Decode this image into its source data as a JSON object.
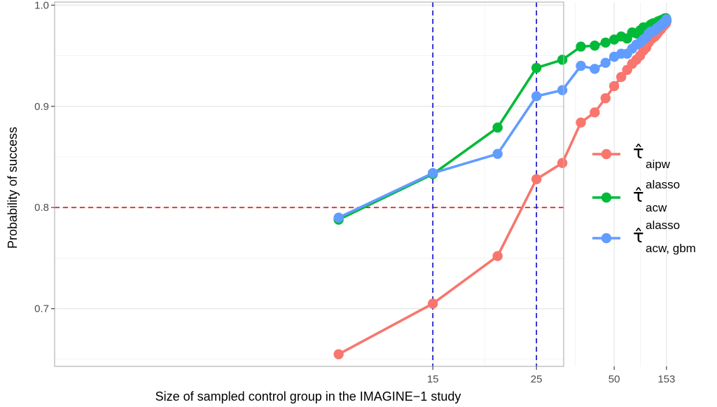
{
  "chart_data": {
    "type": "line",
    "xlabel": "Size of sampled control group in the IMAGINE−1 study",
    "ylabel": "Probability of success",
    "x_ticks": [
      15,
      25,
      50,
      153
    ],
    "x_tick_labels": [
      "15",
      "25",
      "50",
      "153"
    ],
    "y_ticks": [
      0.7,
      0.8,
      0.9,
      1.0
    ],
    "y_tick_labels": [
      "0.7",
      "0.8",
      "0.9",
      "1.0"
    ],
    "xlim": [
      0.33,
      1.64
    ],
    "ylim": [
      0.643,
      1.003
    ],
    "x_scale": "reciprocal",
    "grid": true,
    "legend_position": "right",
    "hlines": [
      {
        "y": 0.8,
        "color": "#e41a1c",
        "style": "dashed"
      }
    ],
    "vlines": [
      {
        "x": 15,
        "color": "#1f1fd0",
        "style": "dashed"
      },
      {
        "x": 25,
        "color": "#1f1fd0",
        "style": "dashed"
      }
    ],
    "x": [
      11,
      15,
      20,
      25,
      30,
      35,
      40,
      45,
      50,
      55,
      60,
      65,
      70,
      75,
      80,
      85,
      90,
      95,
      100,
      105,
      110,
      115,
      120,
      125,
      130,
      135,
      140,
      145,
      150,
      153
    ],
    "series": [
      {
        "name": "aipw",
        "legend_base": "τ̂",
        "legend_sub": "aipw",
        "legend_sup": "",
        "color": "#f8766d",
        "values": [
          0.655,
          0.705,
          0.752,
          0.828,
          0.844,
          0.884,
          0.894,
          0.908,
          0.92,
          0.929,
          0.936,
          0.942,
          0.946,
          0.95,
          0.955,
          0.958,
          0.963,
          0.966,
          0.968,
          0.969,
          0.971,
          0.973,
          0.975,
          0.976,
          0.978,
          0.979,
          0.98,
          0.981,
          0.982,
          0.984
        ]
      },
      {
        "name": "alasso acw",
        "legend_base": "τ̂",
        "legend_sub": "acw",
        "legend_sup": "alasso",
        "color": "#00ba38",
        "values": [
          0.788,
          0.833,
          0.879,
          0.938,
          0.946,
          0.959,
          0.96,
          0.963,
          0.966,
          0.969,
          0.967,
          0.973,
          0.972,
          0.975,
          0.978,
          0.977,
          0.979,
          0.981,
          0.982,
          0.981,
          0.983,
          0.984,
          0.984,
          0.985,
          0.985,
          0.986,
          0.986,
          0.987,
          0.987,
          0.985
        ]
      },
      {
        "name": "alasso acw gbm",
        "legend_base": "τ̂",
        "legend_sub": "acw, gbm",
        "legend_sup": "alasso",
        "color": "#619cff",
        "values": [
          0.79,
          0.834,
          0.853,
          0.91,
          0.916,
          0.94,
          0.937,
          0.943,
          0.949,
          0.952,
          0.952,
          0.957,
          0.961,
          0.963,
          0.966,
          0.968,
          0.972,
          0.974,
          0.974,
          0.975,
          0.977,
          0.978,
          0.979,
          0.98,
          0.981,
          0.982,
          0.983,
          0.983,
          0.984,
          0.986
        ]
      }
    ]
  }
}
